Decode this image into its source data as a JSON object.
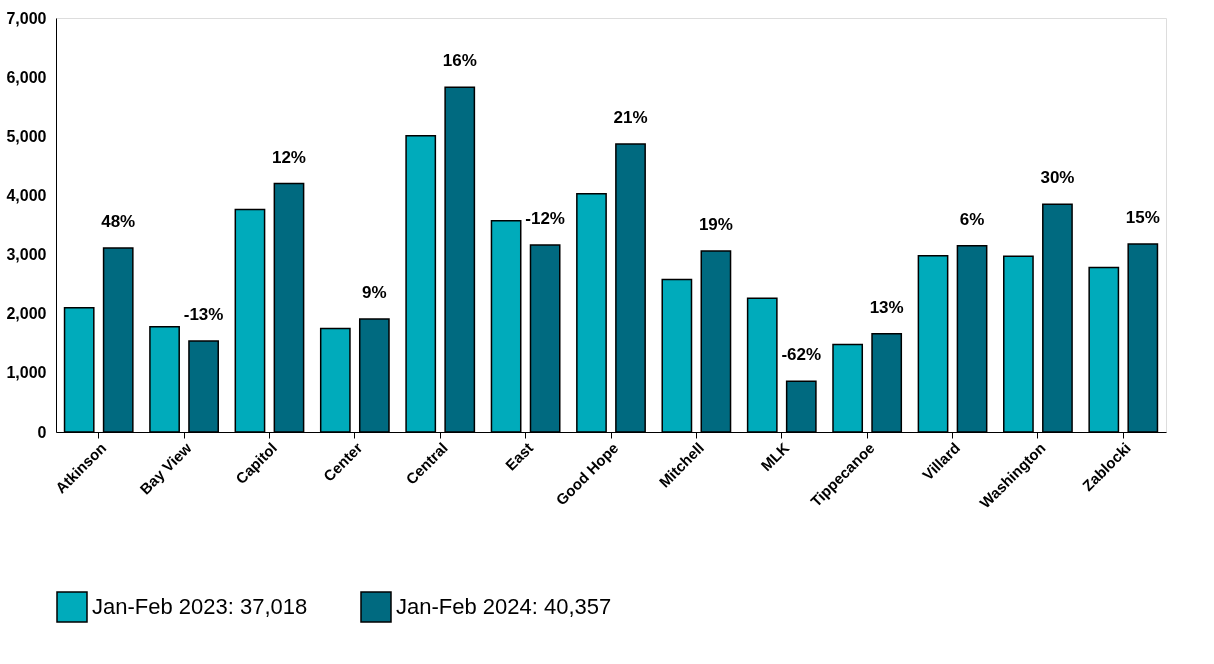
{
  "chart_data": {
    "type": "bar",
    "categories": [
      "Atkinson",
      "Bay View",
      "Capitol",
      "Center",
      "Central",
      "East",
      "Good Hope",
      "Mitchell",
      "MLK",
      "Tippecanoe",
      "Villard",
      "Washington",
      "Zablocki"
    ],
    "series": [
      {
        "name": "Jan-Feb 2023: 37,018",
        "color": "#00abbb",
        "values": [
          2100,
          1780,
          3760,
          1750,
          5010,
          3570,
          4030,
          2580,
          2260,
          1480,
          2980,
          2970,
          2780
        ]
      },
      {
        "name": "Jan-Feb 2024: 40,357",
        "color": "#006a80",
        "values": [
          3110,
          1540,
          4200,
          1910,
          5830,
          3160,
          4870,
          3060,
          860,
          1660,
          3150,
          3850,
          3180
        ]
      }
    ],
    "annotations": [
      {
        "text": "48%",
        "x": "Atkinson",
        "y": 3110
      },
      {
        "text": "-13%",
        "x": "Bay View",
        "y": 1540
      },
      {
        "text": "12%",
        "x": "Capitol",
        "y": 4200
      },
      {
        "text": "9%",
        "x": "Center",
        "y": 1910
      },
      {
        "text": "16%",
        "x": "Central",
        "y": 5830
      },
      {
        "text": "-12%",
        "x": "East",
        "y": 3160
      },
      {
        "text": "21%",
        "x": "Good Hope",
        "y": 4870
      },
      {
        "text": "19%",
        "x": "Mitchell",
        "y": 3060
      },
      {
        "text": "-62%",
        "x": "MLK",
        "y": 860
      },
      {
        "text": "13%",
        "x": "Tippecanoe",
        "y": 1660
      },
      {
        "text": "6%",
        "x": "Villard",
        "y": 3150
      },
      {
        "text": "30%",
        "x": "Washington",
        "y": 3850
      },
      {
        "text": "15%",
        "x": "Zablocki",
        "y": 3180
      }
    ],
    "ylim": [
      0,
      7000
    ],
    "yticks": [
      0,
      {
        "value": 1000,
        "label": "1,000"
      },
      {
        "value": 2000,
        "label": "2,000"
      },
      {
        "value": 3000,
        "label": "3,000"
      },
      {
        "value": 4000,
        "label": "4,000"
      },
      {
        "value": 5000,
        "label": "5,000"
      },
      {
        "value": 6000,
        "label": "6,000"
      },
      {
        "value": 7000,
        "label": "7,000"
      }
    ],
    "legend": "bottom"
  }
}
